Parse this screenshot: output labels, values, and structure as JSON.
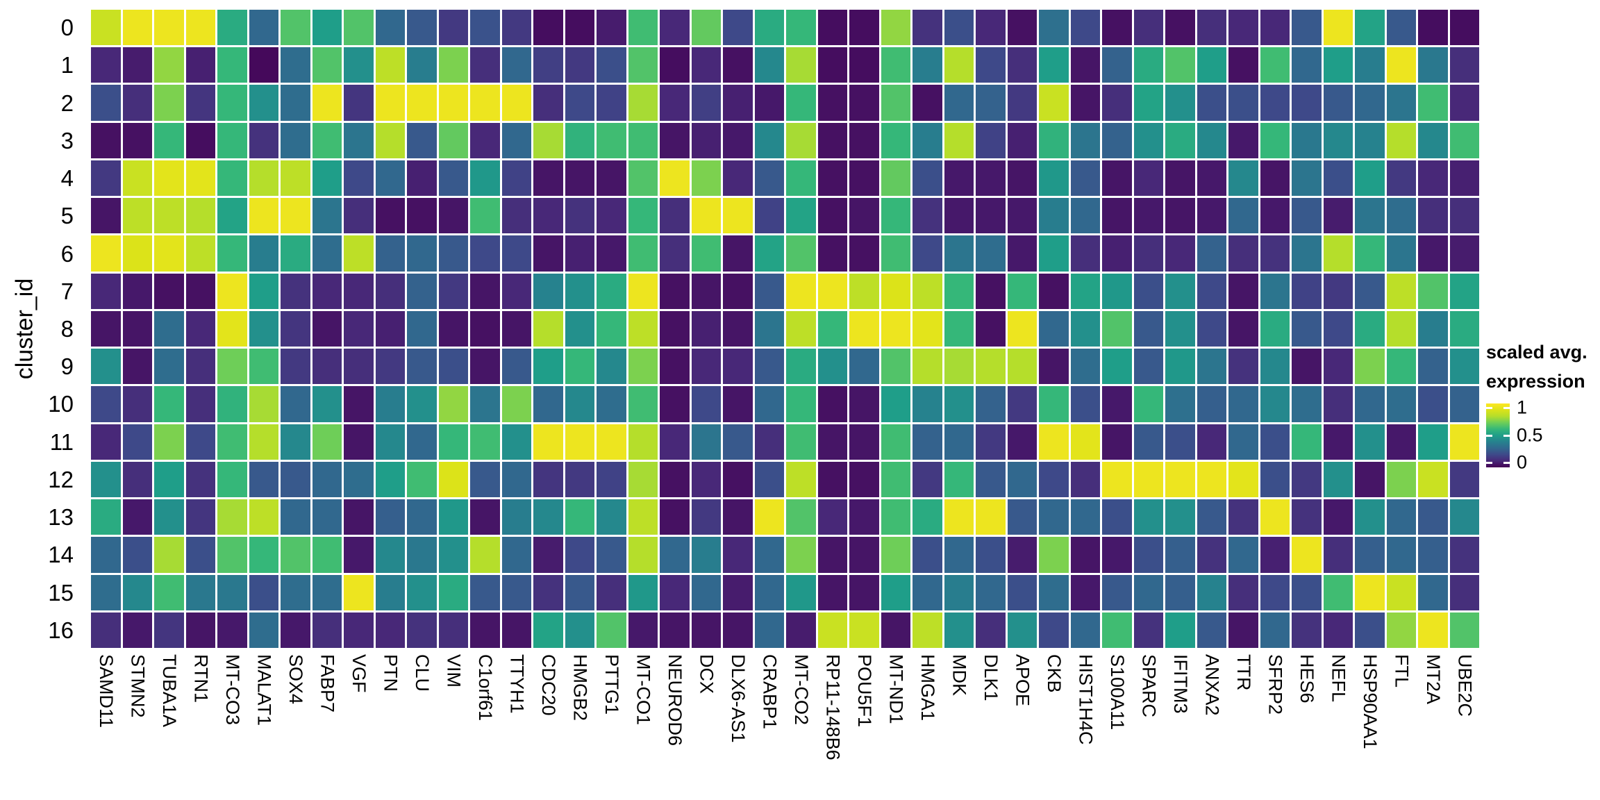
{
  "chart_data": {
    "type": "heatmap",
    "title": "",
    "xlabel": "",
    "ylabel": "cluster_id",
    "colormap": "viridis",
    "value_range": [
      0,
      1
    ],
    "grid": "white gridlines between tiles",
    "legend": {
      "title_line1": "scaled avg.",
      "title_line2": "expression",
      "position": "right",
      "ticks": [
        "1",
        "0.5",
        "0"
      ],
      "color_top": "#fde725",
      "color_mid": "#1f9e89",
      "color_bottom": "#440154"
    },
    "rows": [
      "0",
      "1",
      "2",
      "3",
      "4",
      "5",
      "6",
      "7",
      "8",
      "9",
      "10",
      "11",
      "12",
      "13",
      "14",
      "15",
      "16"
    ],
    "columns": [
      "SAMD11",
      "STMN2",
      "TUBA1A",
      "RTN1",
      "MT-CO3",
      "MALAT1",
      "SOX4",
      "FABP7",
      "VGF",
      "PTN",
      "CLU",
      "VIM",
      "C1orf61",
      "TTYH1",
      "CDC20",
      "HMGB2",
      "PTTG1",
      "MT-CO1",
      "NEUROD6",
      "DCX",
      "DLX6-AS1",
      "CRABP1",
      "MT-CO2",
      "RP11-148B6",
      "POU5F1",
      "MT-ND1",
      "HMGA1",
      "MDK",
      "DLK1",
      "APOE",
      "CKB",
      "HIST1H4C",
      "S100A11",
      "SPARC",
      "IFITM3",
      "ANXA2",
      "TTR",
      "SFRP2",
      "HES6",
      "NEFL",
      "HSP90AA1",
      "FTL",
      "MT2A",
      "UBE2C"
    ],
    "values": [
      [
        0.85,
        0.95,
        0.95,
        0.95,
        0.55,
        0.3,
        0.65,
        0.5,
        0.65,
        0.3,
        0.25,
        0.15,
        0.23,
        0.15,
        0.03,
        0.03,
        0.07,
        0.62,
        0.1,
        0.68,
        0.2,
        0.55,
        0.6,
        0.03,
        0.03,
        0.75,
        0.13,
        0.22,
        0.1,
        0.04,
        0.33,
        0.2,
        0.04,
        0.12,
        0.04,
        0.12,
        0.1,
        0.1,
        0.25,
        0.95,
        0.52,
        0.25,
        0.03,
        0.03
      ],
      [
        0.1,
        0.07,
        0.75,
        0.08,
        0.6,
        0.02,
        0.32,
        0.65,
        0.45,
        0.82,
        0.38,
        0.72,
        0.12,
        0.3,
        0.17,
        0.15,
        0.22,
        0.65,
        0.03,
        0.1,
        0.04,
        0.42,
        0.78,
        0.03,
        0.03,
        0.62,
        0.38,
        0.8,
        0.2,
        0.12,
        0.5,
        0.05,
        0.28,
        0.55,
        0.65,
        0.5,
        0.04,
        0.62,
        0.3,
        0.5,
        0.38,
        0.95,
        0.36,
        0.12
      ],
      [
        0.22,
        0.12,
        0.72,
        0.14,
        0.6,
        0.45,
        0.32,
        0.95,
        0.14,
        0.95,
        0.95,
        0.95,
        0.95,
        0.95,
        0.12,
        0.2,
        0.18,
        0.78,
        0.1,
        0.17,
        0.08,
        0.06,
        0.6,
        0.04,
        0.04,
        0.65,
        0.04,
        0.3,
        0.28,
        0.15,
        0.85,
        0.05,
        0.12,
        0.52,
        0.45,
        0.22,
        0.22,
        0.2,
        0.2,
        0.25,
        0.3,
        0.35,
        0.62,
        0.1
      ],
      [
        0.04,
        0.04,
        0.6,
        0.03,
        0.6,
        0.13,
        0.32,
        0.62,
        0.35,
        0.8,
        0.25,
        0.68,
        0.1,
        0.3,
        0.78,
        0.58,
        0.62,
        0.62,
        0.05,
        0.08,
        0.06,
        0.42,
        0.78,
        0.04,
        0.04,
        0.6,
        0.38,
        0.8,
        0.18,
        0.08,
        0.58,
        0.35,
        0.28,
        0.45,
        0.55,
        0.42,
        0.06,
        0.6,
        0.36,
        0.42,
        0.4,
        0.8,
        0.42,
        0.62
      ],
      [
        0.15,
        0.85,
        0.92,
        0.92,
        0.6,
        0.8,
        0.82,
        0.5,
        0.2,
        0.3,
        0.08,
        0.25,
        0.48,
        0.18,
        0.05,
        0.05,
        0.05,
        0.65,
        0.95,
        0.72,
        0.1,
        0.25,
        0.6,
        0.04,
        0.04,
        0.68,
        0.22,
        0.06,
        0.06,
        0.05,
        0.48,
        0.25,
        0.05,
        0.1,
        0.05,
        0.06,
        0.42,
        0.05,
        0.35,
        0.22,
        0.5,
        0.15,
        0.1,
        0.08
      ],
      [
        0.05,
        0.82,
        0.82,
        0.8,
        0.52,
        0.95,
        0.95,
        0.35,
        0.12,
        0.04,
        0.04,
        0.05,
        0.62,
        0.12,
        0.1,
        0.13,
        0.1,
        0.6,
        0.12,
        0.95,
        0.95,
        0.18,
        0.52,
        0.04,
        0.05,
        0.6,
        0.13,
        0.06,
        0.06,
        0.06,
        0.38,
        0.3,
        0.05,
        0.06,
        0.05,
        0.06,
        0.3,
        0.06,
        0.25,
        0.07,
        0.35,
        0.32,
        0.12,
        0.12
      ],
      [
        0.95,
        0.9,
        0.92,
        0.82,
        0.6,
        0.38,
        0.55,
        0.32,
        0.82,
        0.28,
        0.3,
        0.25,
        0.2,
        0.2,
        0.05,
        0.08,
        0.06,
        0.62,
        0.12,
        0.62,
        0.05,
        0.52,
        0.65,
        0.04,
        0.04,
        0.62,
        0.2,
        0.35,
        0.32,
        0.06,
        0.5,
        0.12,
        0.08,
        0.12,
        0.1,
        0.28,
        0.12,
        0.13,
        0.35,
        0.8,
        0.6,
        0.35,
        0.06,
        0.07
      ],
      [
        0.1,
        0.06,
        0.04,
        0.04,
        0.95,
        0.5,
        0.13,
        0.1,
        0.1,
        0.12,
        0.28,
        0.15,
        0.05,
        0.1,
        0.4,
        0.45,
        0.55,
        0.95,
        0.04,
        0.05,
        0.04,
        0.25,
        0.95,
        0.95,
        0.82,
        0.9,
        0.82,
        0.6,
        0.04,
        0.6,
        0.04,
        0.52,
        0.48,
        0.22,
        0.45,
        0.2,
        0.05,
        0.35,
        0.18,
        0.15,
        0.25,
        0.82,
        0.65,
        0.52
      ],
      [
        0.05,
        0.05,
        0.32,
        0.1,
        0.92,
        0.45,
        0.14,
        0.05,
        0.1,
        0.08,
        0.3,
        0.05,
        0.04,
        0.05,
        0.8,
        0.45,
        0.6,
        0.82,
        0.04,
        0.08,
        0.05,
        0.35,
        0.82,
        0.6,
        0.95,
        0.95,
        0.92,
        0.6,
        0.04,
        0.95,
        0.3,
        0.45,
        0.65,
        0.25,
        0.45,
        0.2,
        0.05,
        0.55,
        0.25,
        0.2,
        0.55,
        0.8,
        0.38,
        0.55
      ],
      [
        0.45,
        0.05,
        0.32,
        0.12,
        0.7,
        0.62,
        0.15,
        0.12,
        0.12,
        0.15,
        0.25,
        0.22,
        0.05,
        0.25,
        0.5,
        0.6,
        0.42,
        0.72,
        0.04,
        0.1,
        0.1,
        0.25,
        0.55,
        0.45,
        0.3,
        0.65,
        0.8,
        0.78,
        0.8,
        0.8,
        0.05,
        0.32,
        0.5,
        0.25,
        0.48,
        0.35,
        0.13,
        0.42,
        0.05,
        0.1,
        0.72,
        0.6,
        0.28,
        0.45
      ],
      [
        0.2,
        0.12,
        0.6,
        0.12,
        0.58,
        0.78,
        0.3,
        0.45,
        0.05,
        0.38,
        0.45,
        0.75,
        0.35,
        0.72,
        0.3,
        0.42,
        0.32,
        0.62,
        0.04,
        0.2,
        0.05,
        0.3,
        0.6,
        0.04,
        0.05,
        0.5,
        0.4,
        0.45,
        0.28,
        0.15,
        0.6,
        0.22,
        0.06,
        0.6,
        0.33,
        0.27,
        0.3,
        0.42,
        0.32,
        0.12,
        0.3,
        0.32,
        0.22,
        0.28
      ],
      [
        0.1,
        0.2,
        0.72,
        0.2,
        0.62,
        0.8,
        0.42,
        0.7,
        0.05,
        0.42,
        0.3,
        0.6,
        0.62,
        0.45,
        0.95,
        0.95,
        0.95,
        0.8,
        0.1,
        0.35,
        0.25,
        0.12,
        0.62,
        0.05,
        0.05,
        0.62,
        0.28,
        0.3,
        0.15,
        0.06,
        0.95,
        0.92,
        0.05,
        0.25,
        0.22,
        0.1,
        0.3,
        0.22,
        0.6,
        0.06,
        0.45,
        0.06,
        0.5,
        0.95
      ],
      [
        0.45,
        0.12,
        0.5,
        0.13,
        0.6,
        0.25,
        0.25,
        0.3,
        0.32,
        0.5,
        0.62,
        0.9,
        0.25,
        0.3,
        0.14,
        0.15,
        0.18,
        0.78,
        0.04,
        0.1,
        0.04,
        0.22,
        0.82,
        0.04,
        0.04,
        0.62,
        0.15,
        0.6,
        0.25,
        0.3,
        0.2,
        0.12,
        0.95,
        0.95,
        0.95,
        0.95,
        0.92,
        0.22,
        0.15,
        0.45,
        0.05,
        0.72,
        0.85,
        0.15
      ],
      [
        0.55,
        0.06,
        0.45,
        0.14,
        0.78,
        0.82,
        0.3,
        0.3,
        0.05,
        0.27,
        0.3,
        0.48,
        0.05,
        0.38,
        0.42,
        0.6,
        0.42,
        0.82,
        0.04,
        0.15,
        0.05,
        0.95,
        0.65,
        0.1,
        0.06,
        0.62,
        0.55,
        0.95,
        0.95,
        0.25,
        0.3,
        0.3,
        0.22,
        0.45,
        0.45,
        0.25,
        0.13,
        0.95,
        0.13,
        0.06,
        0.45,
        0.3,
        0.25,
        0.42
      ],
      [
        0.3,
        0.22,
        0.78,
        0.22,
        0.65,
        0.6,
        0.65,
        0.62,
        0.06,
        0.42,
        0.36,
        0.45,
        0.8,
        0.3,
        0.07,
        0.2,
        0.25,
        0.8,
        0.3,
        0.38,
        0.1,
        0.3,
        0.72,
        0.05,
        0.05,
        0.7,
        0.22,
        0.3,
        0.22,
        0.07,
        0.72,
        0.05,
        0.06,
        0.22,
        0.27,
        0.13,
        0.3,
        0.08,
        0.95,
        0.12,
        0.27,
        0.3,
        0.27,
        0.13
      ],
      [
        0.32,
        0.42,
        0.62,
        0.36,
        0.36,
        0.22,
        0.32,
        0.32,
        0.95,
        0.38,
        0.45,
        0.55,
        0.25,
        0.25,
        0.13,
        0.25,
        0.12,
        0.48,
        0.1,
        0.3,
        0.07,
        0.3,
        0.48,
        0.05,
        0.05,
        0.5,
        0.3,
        0.38,
        0.3,
        0.22,
        0.32,
        0.06,
        0.25,
        0.3,
        0.27,
        0.4,
        0.12,
        0.2,
        0.22,
        0.62,
        0.95,
        0.85,
        0.3,
        0.12
      ],
      [
        0.12,
        0.06,
        0.14,
        0.05,
        0.06,
        0.32,
        0.06,
        0.12,
        0.1,
        0.1,
        0.13,
        0.12,
        0.05,
        0.05,
        0.52,
        0.45,
        0.65,
        0.06,
        0.05,
        0.05,
        0.05,
        0.3,
        0.07,
        0.85,
        0.85,
        0.05,
        0.82,
        0.45,
        0.12,
        0.45,
        0.2,
        0.3,
        0.62,
        0.13,
        0.5,
        0.25,
        0.05,
        0.3,
        0.13,
        0.1,
        0.22,
        0.75,
        0.95,
        0.65
      ]
    ]
  }
}
